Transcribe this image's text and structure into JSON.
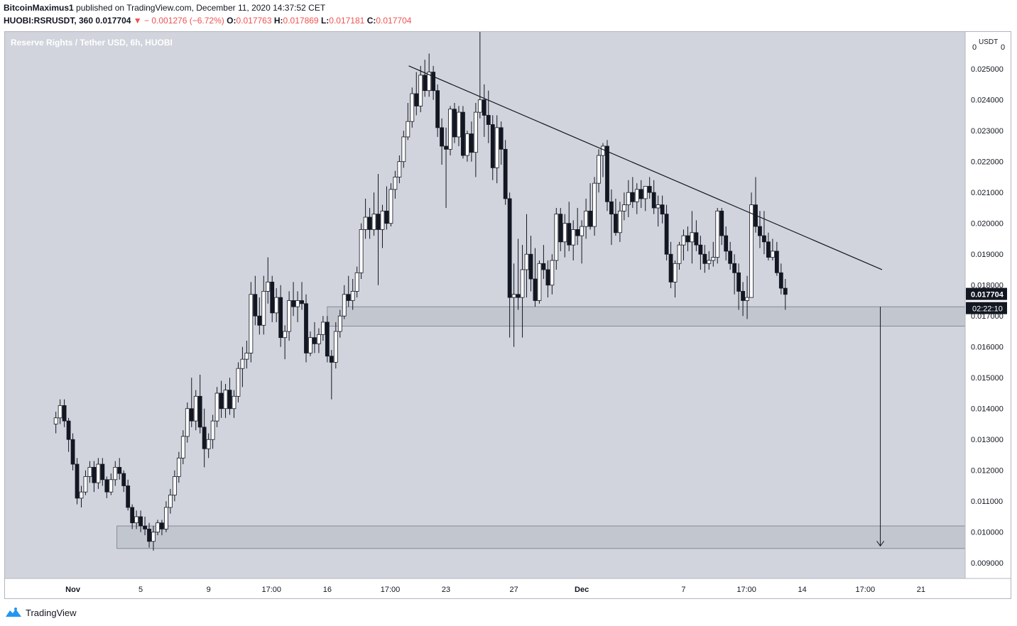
{
  "header": {
    "author": "BitcoinMaximus1",
    "published_text": "published on TradingView.com, December 11, 2020 14:37:52 CET",
    "symbol": "HUOBI:RSRUSDT, 360",
    "last": "0.017704",
    "change": "− 0.001276 (−6.72%)",
    "o_label": "O:",
    "o_value": "0.017763",
    "h_label": "H:",
    "h_value": "0.017869",
    "l_label": "L:",
    "l_value": "0.017181",
    "c_label": "C:",
    "c_value": "0.017704"
  },
  "footer": {
    "brand": "TradingView"
  },
  "chart_data": {
    "type": "candlestick",
    "title": "Reserve Rights / Tether USD, 6h, HUOBI",
    "currency_label": "USDT",
    "y_top_labels": [
      "0",
      "0"
    ],
    "y_ticks": [
      "0.025000",
      "0.024000",
      "0.023000",
      "0.022000",
      "0.021000",
      "0.020000",
      "0.019000",
      "0.018000",
      "0.017000",
      "0.016000",
      "0.015000",
      "0.014000",
      "0.013000",
      "0.012000",
      "0.011000",
      "0.010000",
      "0.009000"
    ],
    "ylim": [
      0.0085,
      0.0262
    ],
    "x_ticks": [
      {
        "label": "Nov",
        "day": 1,
        "bold": true
      },
      {
        "label": "5",
        "day": 5
      },
      {
        "label": "9",
        "day": 9
      },
      {
        "label": "17:00",
        "day": 12.71
      },
      {
        "label": "16",
        "day": 16
      },
      {
        "label": "17:00",
        "day": 19.71
      },
      {
        "label": "23",
        "day": 23
      },
      {
        "label": "27",
        "day": 27
      },
      {
        "label": "Dec",
        "day": 31,
        "bold": true
      },
      {
        "label": "7",
        "day": 37
      },
      {
        "label": "17:00",
        "day": 40.71
      },
      {
        "label": "14",
        "day": 44
      },
      {
        "label": "17:00",
        "day": 47.71
      },
      {
        "label": "21",
        "day": 51
      }
    ],
    "xlim": [
      -3.0,
      53.6
    ],
    "last_price_label": "0.017704",
    "countdown_label": "02:22:10",
    "last_price": 0.017704,
    "grid": false,
    "support_zones": [
      {
        "x_start": 16.0,
        "y_low": 0.01667,
        "y_high": 0.0173
      },
      {
        "x_start": 3.6,
        "y_low": 0.00947,
        "y_high": 0.0102
      }
    ],
    "resistance_line": {
      "x1": 20.8,
      "y1": 0.0251,
      "x2": 48.7,
      "y2": 0.0185
    },
    "projection_arrow": {
      "x": 48.6,
      "y_from": 0.0173,
      "y_to": 0.00955
    },
    "candles_6h": [
      [
        0.0135,
        0.0139,
        0.0132,
        0.0137
      ],
      [
        0.0137,
        0.0143,
        0.0135,
        0.0141
      ],
      [
        0.0141,
        0.0143,
        0.0134,
        0.0136
      ],
      [
        0.0136,
        0.0137,
        0.0126,
        0.013
      ],
      [
        0.013,
        0.0132,
        0.012,
        0.0122
      ],
      [
        0.0122,
        0.0124,
        0.0109,
        0.0111
      ],
      [
        0.0111,
        0.0115,
        0.0108,
        0.0113
      ],
      [
        0.0113,
        0.012,
        0.0112,
        0.0118
      ],
      [
        0.0118,
        0.0123,
        0.0116,
        0.0121
      ],
      [
        0.0121,
        0.0123,
        0.0113,
        0.0116
      ],
      [
        0.0116,
        0.0124,
        0.0114,
        0.0122
      ],
      [
        0.0122,
        0.0124,
        0.0115,
        0.0117
      ],
      [
        0.0117,
        0.0118,
        0.0111,
        0.0113
      ],
      [
        0.0113,
        0.0119,
        0.0112,
        0.0117
      ],
      [
        0.0117,
        0.0123,
        0.0115,
        0.0121
      ],
      [
        0.0121,
        0.0124,
        0.0117,
        0.0119
      ],
      [
        0.0119,
        0.012,
        0.0113,
        0.0115
      ],
      [
        0.0115,
        0.0117,
        0.0107,
        0.0108
      ],
      [
        0.0108,
        0.0109,
        0.0101,
        0.0103
      ],
      [
        0.0103,
        0.0107,
        0.0101,
        0.0105
      ],
      [
        0.0105,
        0.0107,
        0.01,
        0.0102
      ],
      [
        0.0102,
        0.0105,
        0.0099,
        0.0101
      ],
      [
        0.0101,
        0.0103,
        0.0095,
        0.0097
      ],
      [
        0.0097,
        0.0102,
        0.0094,
        0.01
      ],
      [
        0.01,
        0.0104,
        0.0099,
        0.0103
      ],
      [
        0.0103,
        0.0104,
        0.0099,
        0.0101
      ],
      [
        0.0101,
        0.011,
        0.01,
        0.0108
      ],
      [
        0.0108,
        0.0114,
        0.0106,
        0.0112
      ],
      [
        0.0112,
        0.012,
        0.011,
        0.0118
      ],
      [
        0.0118,
        0.0126,
        0.0116,
        0.0124
      ],
      [
        0.0124,
        0.0133,
        0.0122,
        0.0131
      ],
      [
        0.0131,
        0.0142,
        0.0129,
        0.014
      ],
      [
        0.014,
        0.015,
        0.0134,
        0.0136
      ],
      [
        0.0136,
        0.0146,
        0.0133,
        0.0144
      ],
      [
        0.0144,
        0.0151,
        0.0132,
        0.0134
      ],
      [
        0.0134,
        0.014,
        0.0121,
        0.0127
      ],
      [
        0.0127,
        0.0132,
        0.0124,
        0.013
      ],
      [
        0.013,
        0.0138,
        0.0127,
        0.0136
      ],
      [
        0.0136,
        0.0147,
        0.0134,
        0.0145
      ],
      [
        0.0145,
        0.0149,
        0.0137,
        0.014
      ],
      [
        0.014,
        0.0148,
        0.0137,
        0.0146
      ],
      [
        0.0146,
        0.015,
        0.0138,
        0.014
      ],
      [
        0.014,
        0.0146,
        0.0137,
        0.0144
      ],
      [
        0.0144,
        0.0155,
        0.0142,
        0.0153
      ],
      [
        0.0153,
        0.016,
        0.0147,
        0.0156
      ],
      [
        0.0156,
        0.0162,
        0.0153,
        0.0158
      ],
      [
        0.0158,
        0.0181,
        0.0155,
        0.0177
      ],
      [
        0.0177,
        0.0183,
        0.0167,
        0.017
      ],
      [
        0.017,
        0.0176,
        0.0164,
        0.0167
      ],
      [
        0.0167,
        0.0183,
        0.0164,
        0.0178
      ],
      [
        0.0178,
        0.0189,
        0.0174,
        0.0181
      ],
      [
        0.0181,
        0.0183,
        0.0168,
        0.0171
      ],
      [
        0.0171,
        0.0179,
        0.0168,
        0.0176
      ],
      [
        0.0176,
        0.018,
        0.016,
        0.0163
      ],
      [
        0.0163,
        0.0167,
        0.0156,
        0.0165
      ],
      [
        0.0165,
        0.0178,
        0.0162,
        0.0175
      ],
      [
        0.0175,
        0.0181,
        0.017,
        0.0173
      ],
      [
        0.0173,
        0.0178,
        0.0168,
        0.0175
      ],
      [
        0.0175,
        0.0181,
        0.0172,
        0.0174
      ],
      [
        0.0174,
        0.0177,
        0.0155,
        0.0158
      ],
      [
        0.0158,
        0.0165,
        0.0157,
        0.0163
      ],
      [
        0.0163,
        0.0168,
        0.0158,
        0.0161
      ],
      [
        0.0161,
        0.0166,
        0.0158,
        0.0164
      ],
      [
        0.0164,
        0.017,
        0.0162,
        0.0168
      ],
      [
        0.0168,
        0.017,
        0.0155,
        0.0157
      ],
      [
        0.0157,
        0.0159,
        0.0143,
        0.0155
      ],
      [
        0.0155,
        0.0168,
        0.0153,
        0.0165
      ],
      [
        0.0165,
        0.0172,
        0.0163,
        0.017
      ],
      [
        0.017,
        0.018,
        0.0169,
        0.0177
      ],
      [
        0.0177,
        0.0183,
        0.0173,
        0.0175
      ],
      [
        0.0175,
        0.0182,
        0.0172,
        0.0178
      ],
      [
        0.0178,
        0.0186,
        0.0176,
        0.0184
      ],
      [
        0.0184,
        0.02,
        0.0182,
        0.0198
      ],
      [
        0.0198,
        0.0208,
        0.0195,
        0.0202
      ],
      [
        0.0202,
        0.0205,
        0.0195,
        0.0198
      ],
      [
        0.0198,
        0.021,
        0.0196,
        0.0203
      ],
      [
        0.0203,
        0.0216,
        0.018,
        0.0198
      ],
      [
        0.0198,
        0.0206,
        0.0192,
        0.0204
      ],
      [
        0.0204,
        0.0212,
        0.0198,
        0.02
      ],
      [
        0.02,
        0.0213,
        0.0199,
        0.0211
      ],
      [
        0.0211,
        0.0217,
        0.0208,
        0.0215
      ],
      [
        0.0215,
        0.0222,
        0.0213,
        0.022
      ],
      [
        0.022,
        0.023,
        0.0218,
        0.0228
      ],
      [
        0.0228,
        0.0239,
        0.0227,
        0.0233
      ],
      [
        0.0233,
        0.0244,
        0.0231,
        0.0242
      ],
      [
        0.0242,
        0.0249,
        0.0235,
        0.0238
      ],
      [
        0.0238,
        0.0251,
        0.0236,
        0.0248
      ],
      [
        0.0248,
        0.0253,
        0.0241,
        0.0243
      ],
      [
        0.0243,
        0.0255,
        0.0241,
        0.0249
      ],
      [
        0.0249,
        0.0251,
        0.024,
        0.0243
      ],
      [
        0.0243,
        0.0245,
        0.0228,
        0.0231
      ],
      [
        0.0231,
        0.0234,
        0.0219,
        0.0225
      ],
      [
        0.0225,
        0.0231,
        0.0205,
        0.0224
      ],
      [
        0.0224,
        0.0238,
        0.0222,
        0.0237
      ],
      [
        0.0237,
        0.0239,
        0.0226,
        0.0228
      ],
      [
        0.0228,
        0.0238,
        0.0225,
        0.0236
      ],
      [
        0.0236,
        0.0238,
        0.0221,
        0.0222
      ],
      [
        0.0222,
        0.023,
        0.022,
        0.0229
      ],
      [
        0.0229,
        0.0233,
        0.022,
        0.0223
      ],
      [
        0.0223,
        0.0239,
        0.0215,
        0.0236
      ],
      [
        0.0236,
        0.0262,
        0.0234,
        0.024
      ],
      [
        0.024,
        0.0245,
        0.0228,
        0.0235
      ],
      [
        0.0235,
        0.0243,
        0.0226,
        0.0232
      ],
      [
        0.0232,
        0.0235,
        0.0214,
        0.0218
      ],
      [
        0.0218,
        0.0235,
        0.0213,
        0.0231
      ],
      [
        0.0231,
        0.0233,
        0.0219,
        0.0224
      ],
      [
        0.0224,
        0.0227,
        0.0206,
        0.0208
      ],
      [
        0.0208,
        0.021,
        0.0163,
        0.0176
      ],
      [
        0.0176,
        0.0187,
        0.016,
        0.0177
      ],
      [
        0.0177,
        0.0195,
        0.0172,
        0.0176
      ],
      [
        0.0176,
        0.0193,
        0.0163,
        0.0185
      ],
      [
        0.0185,
        0.0203,
        0.0176,
        0.019
      ],
      [
        0.019,
        0.0196,
        0.0178,
        0.0182
      ],
      [
        0.0182,
        0.0192,
        0.0173,
        0.0175
      ],
      [
        0.0175,
        0.0188,
        0.0174,
        0.0187
      ],
      [
        0.0187,
        0.0193,
        0.0182,
        0.0185
      ],
      [
        0.0185,
        0.0188,
        0.0176,
        0.018
      ],
      [
        0.018,
        0.019,
        0.0177,
        0.0188
      ],
      [
        0.0188,
        0.0205,
        0.0185,
        0.0203
      ],
      [
        0.0203,
        0.0205,
        0.0191,
        0.0194
      ],
      [
        0.0194,
        0.0203,
        0.0189,
        0.02
      ],
      [
        0.02,
        0.0207,
        0.0191,
        0.0193
      ],
      [
        0.0193,
        0.0201,
        0.0188,
        0.0198
      ],
      [
        0.0198,
        0.0205,
        0.0193,
        0.0196
      ],
      [
        0.0196,
        0.0201,
        0.0187,
        0.0199
      ],
      [
        0.0199,
        0.0208,
        0.0195,
        0.0204
      ],
      [
        0.0204,
        0.0213,
        0.0198,
        0.0199
      ],
      [
        0.0199,
        0.0215,
        0.0196,
        0.0213
      ],
      [
        0.0213,
        0.0224,
        0.021,
        0.0222
      ],
      [
        0.0222,
        0.0226,
        0.0215,
        0.0225
      ],
      [
        0.0225,
        0.0227,
        0.0204,
        0.0207
      ],
      [
        0.0207,
        0.0211,
        0.0193,
        0.0203
      ],
      [
        0.0203,
        0.0208,
        0.0196,
        0.0197
      ],
      [
        0.0197,
        0.0207,
        0.0194,
        0.0204
      ],
      [
        0.0204,
        0.021,
        0.0201,
        0.0206
      ],
      [
        0.0206,
        0.0214,
        0.0202,
        0.021
      ],
      [
        0.021,
        0.0215,
        0.0205,
        0.0207
      ],
      [
        0.0207,
        0.0213,
        0.0203,
        0.0211
      ],
      [
        0.0211,
        0.0214,
        0.0205,
        0.0208
      ],
      [
        0.0208,
        0.0212,
        0.0204,
        0.0212
      ],
      [
        0.0212,
        0.0215,
        0.0208,
        0.021
      ],
      [
        0.021,
        0.0214,
        0.0203,
        0.0205
      ],
      [
        0.0205,
        0.0209,
        0.0199,
        0.0206
      ],
      [
        0.0206,
        0.0209,
        0.02,
        0.0203
      ],
      [
        0.0203,
        0.0206,
        0.0188,
        0.019
      ],
      [
        0.019,
        0.0194,
        0.0179,
        0.0181
      ],
      [
        0.0181,
        0.0188,
        0.0176,
        0.0187
      ],
      [
        0.0187,
        0.0194,
        0.0185,
        0.0193
      ],
      [
        0.0193,
        0.0198,
        0.0188,
        0.0196
      ],
      [
        0.0196,
        0.0199,
        0.0191,
        0.0194
      ],
      [
        0.0194,
        0.0204,
        0.0187,
        0.0197
      ],
      [
        0.0197,
        0.0201,
        0.0191,
        0.0193
      ],
      [
        0.0193,
        0.0196,
        0.0185,
        0.019
      ],
      [
        0.019,
        0.0193,
        0.0184,
        0.0187
      ],
      [
        0.0187,
        0.0191,
        0.0185,
        0.0188
      ],
      [
        0.0188,
        0.0194,
        0.0186,
        0.0189
      ],
      [
        0.0189,
        0.0205,
        0.0187,
        0.0204
      ],
      [
        0.0204,
        0.0205,
        0.0193,
        0.0196
      ],
      [
        0.0196,
        0.0199,
        0.0188,
        0.0191
      ],
      [
        0.0191,
        0.0194,
        0.0185,
        0.0187
      ],
      [
        0.0187,
        0.019,
        0.0177,
        0.0184
      ],
      [
        0.0184,
        0.0187,
        0.0172,
        0.0178
      ],
      [
        0.0178,
        0.0181,
        0.017,
        0.0175
      ],
      [
        0.0175,
        0.0183,
        0.0169,
        0.0176
      ],
      [
        0.0176,
        0.021,
        0.0176,
        0.0206
      ],
      [
        0.0206,
        0.0215,
        0.0197,
        0.0199
      ],
      [
        0.0199,
        0.0204,
        0.0192,
        0.0196
      ],
      [
        0.0196,
        0.0204,
        0.019,
        0.0194
      ],
      [
        0.0194,
        0.0197,
        0.0188,
        0.0189
      ],
      [
        0.0189,
        0.0195,
        0.0188,
        0.0191
      ],
      [
        0.0191,
        0.0194,
        0.0183,
        0.0184
      ],
      [
        0.0184,
        0.0187,
        0.0177,
        0.0179
      ],
      [
        0.0179,
        0.0182,
        0.0172,
        0.0177
      ]
    ]
  }
}
